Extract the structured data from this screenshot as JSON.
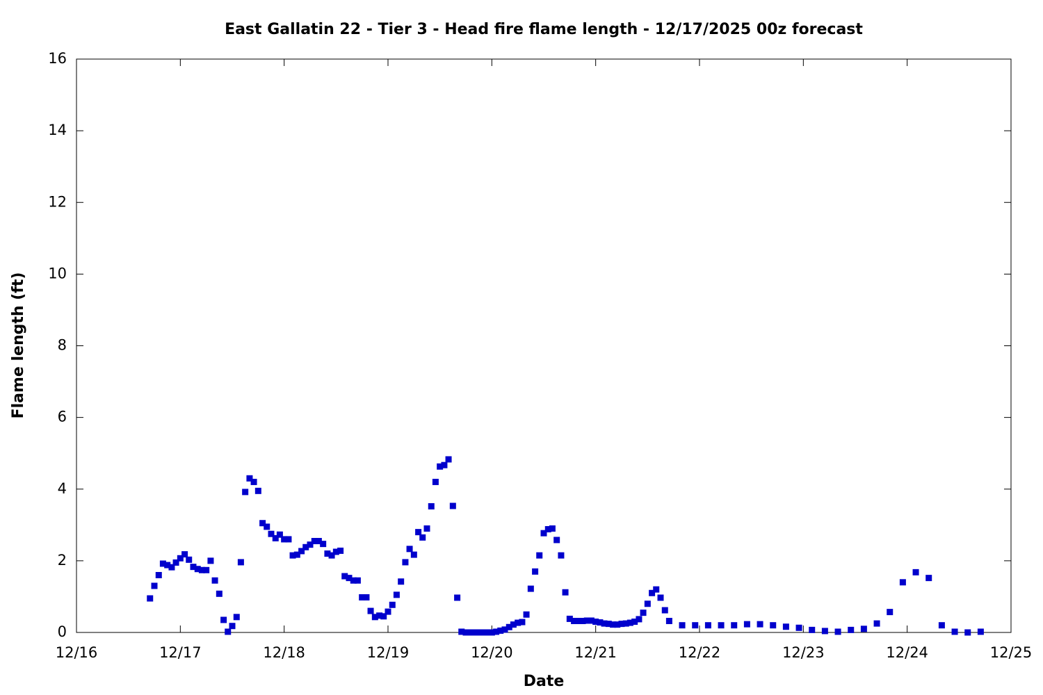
{
  "chart_data": {
    "type": "scatter",
    "title": "East Gallatin 22 - Tier 3 - Head fire flame length - 12/17/2025 00z forecast",
    "x_label": "Date",
    "y_label": "Flame length (ft)",
    "xlim": [
      16,
      25
    ],
    "ylim": [
      0,
      16
    ],
    "xticks": [
      {
        "value": 16,
        "label": "12/16"
      },
      {
        "value": 17,
        "label": "12/17"
      },
      {
        "value": 18,
        "label": "12/18"
      },
      {
        "value": 19,
        "label": "12/19"
      },
      {
        "value": 20,
        "label": "12/20"
      },
      {
        "value": 21,
        "label": "12/21"
      },
      {
        "value": 22,
        "label": "12/22"
      },
      {
        "value": 23,
        "label": "12/23"
      },
      {
        "value": 24,
        "label": "12/24"
      },
      {
        "value": 25,
        "label": "12/25"
      }
    ],
    "yticks": [
      0,
      2,
      4,
      6,
      8,
      10,
      12,
      14,
      16
    ],
    "grid": false,
    "series": [
      {
        "color": "#0000cc",
        "x": [
          16.708,
          16.75,
          16.792,
          16.833,
          16.875,
          16.917,
          16.958,
          17,
          17.042,
          17.083,
          17.125,
          17.167,
          17.208,
          17.25,
          17.292,
          17.333,
          17.375,
          17.417,
          17.458,
          17.5,
          17.542,
          17.583,
          17.625,
          17.667,
          17.708,
          17.75,
          17.792,
          17.833,
          17.875,
          17.917,
          17.958,
          18,
          18.042,
          18.083,
          18.125,
          18.167,
          18.208,
          18.25,
          18.292,
          18.333,
          18.375,
          18.417,
          18.458,
          18.5,
          18.542,
          18.583,
          18.625,
          18.667,
          18.708,
          18.75,
          18.792,
          18.833,
          18.875,
          18.917,
          18.958,
          19,
          19.042,
          19.083,
          19.125,
          19.167,
          19.208,
          19.25,
          19.292,
          19.333,
          19.375,
          19.417,
          19.458,
          19.5,
          19.542,
          19.583,
          19.625,
          19.667,
          19.708,
          19.75,
          19.792,
          19.833,
          19.875,
          19.917,
          19.958,
          20,
          20.042,
          20.083,
          20.125,
          20.167,
          20.208,
          20.25,
          20.292,
          20.333,
          20.375,
          20.417,
          20.458,
          20.5,
          20.542,
          20.583,
          20.625,
          20.667,
          20.708,
          20.75,
          20.792,
          20.833,
          20.875,
          20.917,
          20.958,
          21,
          21.042,
          21.083,
          21.125,
          21.167,
          21.208,
          21.25,
          21.292,
          21.333,
          21.375,
          21.417,
          21.458,
          21.5,
          21.542,
          21.583,
          21.625,
          21.667,
          21.708,
          21.833,
          21.958,
          22.083,
          22.208,
          22.333,
          22.458,
          22.583,
          22.708,
          22.833,
          22.958,
          23.083,
          23.208,
          23.333,
          23.458,
          23.583,
          23.708,
          23.833,
          23.958,
          24.083,
          24.208,
          24.333,
          24.458,
          24.583,
          24.708
        ],
        "values": [
          0.95,
          1.3,
          1.6,
          1.92,
          1.88,
          1.82,
          1.95,
          2.07,
          2.18,
          2.03,
          1.83,
          1.77,
          1.74,
          1.74,
          2.0,
          1.45,
          1.08,
          0.35,
          0.02,
          0.18,
          0.43,
          1.96,
          3.92,
          4.3,
          4.2,
          3.95,
          3.05,
          2.95,
          2.75,
          2.63,
          2.73,
          2.6,
          2.6,
          2.15,
          2.17,
          2.27,
          2.38,
          2.45,
          2.55,
          2.55,
          2.47,
          2.2,
          2.15,
          2.25,
          2.28,
          1.57,
          1.52,
          1.45,
          1.45,
          0.98,
          0.98,
          0.6,
          0.43,
          0.47,
          0.45,
          0.58,
          0.77,
          1.05,
          1.42,
          1.96,
          2.33,
          2.17,
          2.8,
          2.65,
          2.9,
          3.52,
          4.2,
          4.63,
          4.67,
          4.83,
          3.53,
          0.97,
          0.02,
          0,
          0,
          0,
          0,
          0,
          0,
          0,
          0.02,
          0.05,
          0.08,
          0.15,
          0.22,
          0.27,
          0.29,
          0.5,
          1.22,
          1.7,
          2.15,
          2.77,
          2.88,
          2.9,
          2.58,
          2.15,
          1.12,
          0.38,
          0.32,
          0.32,
          0.32,
          0.33,
          0.33,
          0.3,
          0.28,
          0.25,
          0.24,
          0.22,
          0.22,
          0.24,
          0.25,
          0.27,
          0.3,
          0.37,
          0.55,
          0.8,
          1.1,
          1.2,
          0.97,
          0.62,
          0.32,
          0.2,
          0.2,
          0.2,
          0.2,
          0.2,
          0.23,
          0.23,
          0.2,
          0.16,
          0.13,
          0.07,
          0.04,
          0.02,
          0.07,
          0.1,
          0.25,
          0.57,
          1.4,
          1.68,
          1.52,
          0.2,
          0.02,
          0,
          0.02
        ]
      }
    ]
  }
}
